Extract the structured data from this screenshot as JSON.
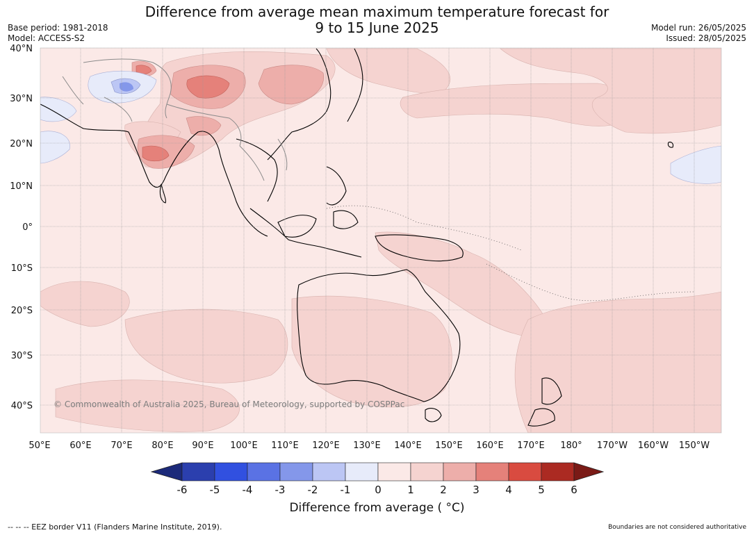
{
  "title": {
    "line1": "Difference from average mean maximum temperature forecast for",
    "line2": "9 to 15 June 2025"
  },
  "meta": {
    "base_period": "Base period: 1981-2018",
    "model": "Model: ACCESS-S2",
    "model_run": "Model run: 26/05/2025",
    "issued": "Issued: 28/05/2025"
  },
  "map": {
    "lat_labels": [
      "40°N",
      "30°N",
      "20°N",
      "10°N",
      "0°",
      "10°S",
      "20°S",
      "30°S",
      "40°S"
    ],
    "lon_labels": [
      "50°E",
      "60°E",
      "70°E",
      "80°E",
      "90°E",
      "100°E",
      "110°E",
      "120°E",
      "130°E",
      "140°E",
      "150°E",
      "160°E",
      "170°E",
      "180°",
      "170°W",
      "160°W",
      "150°W"
    ],
    "watermark": "© Commonwealth of Australia 2025, Bureau of Meteorology, supported by COSPPac",
    "background_color": "#fbe9e7"
  },
  "colorbar": {
    "ticks": [
      "-6",
      "-5",
      "-4",
      "-3",
      "-2",
      "-1",
      "0",
      "1",
      "2",
      "3",
      "4",
      "5",
      "6"
    ],
    "colors": [
      "#1c2a7a",
      "#2b3fae",
      "#3150e0",
      "#5a72e4",
      "#8497ea",
      "#bcc6f4",
      "#e7ebfa",
      "#fbe9e7",
      "#f5d3d0",
      "#edaeaa",
      "#e5817a",
      "#d94b40",
      "#ab2a22",
      "#7a1a16"
    ],
    "label": "Difference from average ( °C)"
  },
  "footer": {
    "left": "--  --  -- EEZ border V11 (Flanders Marine Institute, 2019).",
    "right": "Boundaries are not considered authoritative"
  }
}
